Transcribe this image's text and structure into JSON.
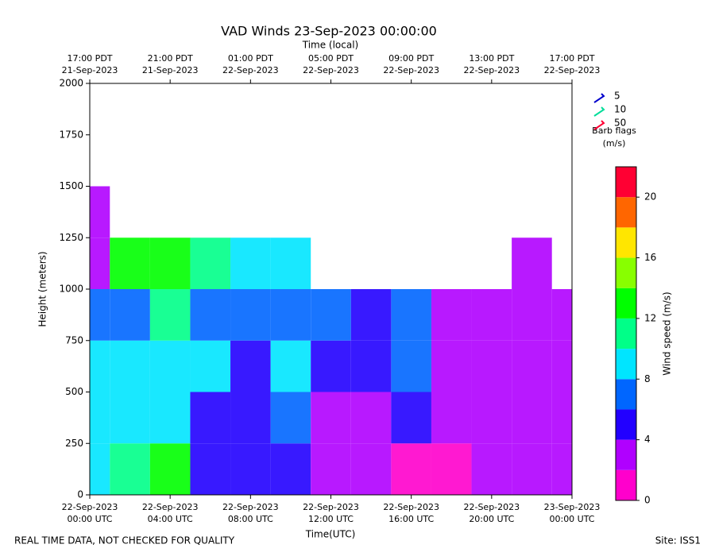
{
  "chart_data": {
    "type": "wind_grid",
    "title": "VAD Winds 23-Sep-2023 00:00:00",
    "top_axis_label": "Time (local)",
    "xlabel": "Time(UTC)",
    "ylabel": "Height (meters)",
    "xlim": [
      0,
      24
    ],
    "ylim": [
      0,
      2000
    ],
    "xticks": [
      {
        "value": 0,
        "label": [
          "22-Sep-2023",
          "00:00 UTC"
        ]
      },
      {
        "value": 4,
        "label": [
          "22-Sep-2023",
          "04:00 UTC"
        ]
      },
      {
        "value": 8,
        "label": [
          "22-Sep-2023",
          "08:00 UTC"
        ]
      },
      {
        "value": 12,
        "label": [
          "22-Sep-2023",
          "12:00 UTC"
        ]
      },
      {
        "value": 16,
        "label": [
          "22-Sep-2023",
          "16:00 UTC"
        ]
      },
      {
        "value": 20,
        "label": [
          "22-Sep-2023",
          "20:00 UTC"
        ]
      },
      {
        "value": 24,
        "label": [
          "23-Sep-2023",
          "00:00 UTC"
        ]
      }
    ],
    "top_xticks": [
      {
        "value": 0,
        "label": [
          "17:00 PDT",
          "21-Sep-2023"
        ]
      },
      {
        "value": 4,
        "label": [
          "21:00 PDT",
          "21-Sep-2023"
        ]
      },
      {
        "value": 8,
        "label": [
          "01:00 PDT",
          "22-Sep-2023"
        ]
      },
      {
        "value": 12,
        "label": [
          "05:00 PDT",
          "22-Sep-2023"
        ]
      },
      {
        "value": 16,
        "label": [
          "09:00 PDT",
          "22-Sep-2023"
        ]
      },
      {
        "value": 20,
        "label": [
          "13:00 PDT",
          "22-Sep-2023"
        ]
      },
      {
        "value": 24,
        "label": [
          "17:00 PDT",
          "22-Sep-2023"
        ]
      }
    ],
    "yticks": [
      0,
      250,
      500,
      750,
      1000,
      1250,
      1500,
      1750,
      2000
    ],
    "x": [
      0,
      2,
      4,
      6,
      8,
      10,
      12,
      14,
      16,
      18,
      20,
      22,
      24
    ],
    "heights": [
      125,
      375,
      625,
      875,
      1125,
      1375
    ],
    "values": [
      [
        9,
        9,
        8,
        6,
        3,
        3
      ],
      [
        11,
        9,
        8,
        7,
        13,
        null
      ],
      [
        13,
        9,
        9,
        11,
        12,
        null
      ],
      [
        5,
        5,
        9,
        7,
        10,
        null
      ],
      [
        5,
        5,
        5,
        7,
        8,
        null
      ],
      [
        4,
        7,
        9,
        7,
        8,
        null
      ],
      [
        3,
        3,
        5,
        6,
        null,
        null
      ],
      [
        2,
        3,
        5,
        5,
        null,
        null
      ],
      [
        1,
        5,
        6,
        6,
        null,
        null
      ],
      [
        1,
        2,
        2,
        3,
        null,
        null
      ],
      [
        2,
        2,
        2,
        3,
        null,
        null
      ],
      [
        2,
        2,
        2,
        2,
        2,
        null
      ],
      [
        3,
        2,
        2,
        3,
        null,
        null
      ]
    ],
    "barb_legend": [
      {
        "label": "5",
        "color": "#0000cc"
      },
      {
        "label": "10",
        "color": "#00dd99"
      },
      {
        "label": "50",
        "color": "#ff0033"
      }
    ],
    "barb_legend_title": [
      "Barb flags",
      "(m/s)"
    ],
    "colorbar": {
      "label": "Wind speed (m/s)",
      "bounds": [
        0,
        2,
        4,
        6,
        8,
        10,
        12,
        14,
        16,
        18,
        20,
        22
      ],
      "colors": [
        "#ff00cc",
        "#b000ff",
        "#2200ff",
        "#0066ff",
        "#00e5ff",
        "#00ff88",
        "#00ff00",
        "#88ff00",
        "#ffe600",
        "#ff6600",
        "#ff0033"
      ],
      "ticks": [
        0,
        4,
        8,
        12,
        16,
        20
      ]
    },
    "footer_left": "REAL TIME DATA, NOT CHECKED FOR QUALITY",
    "footer_right": "Site: ISS1"
  }
}
